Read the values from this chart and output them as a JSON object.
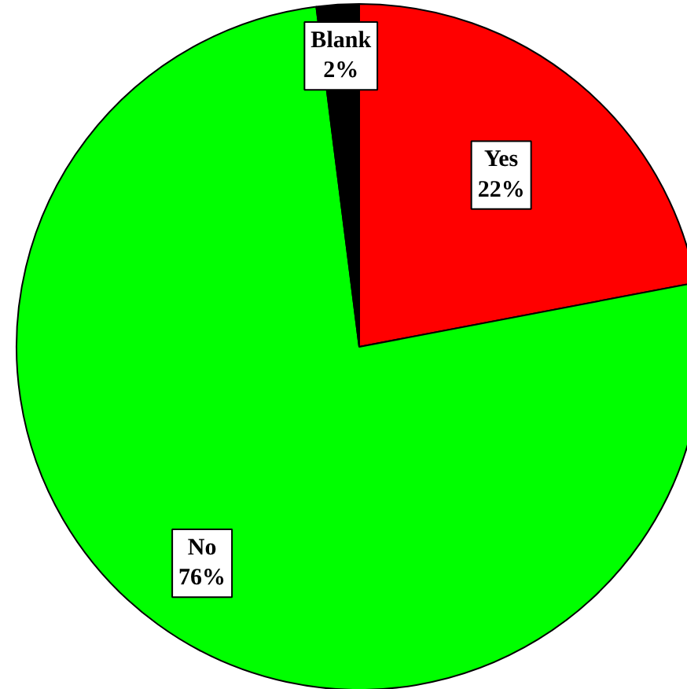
{
  "chart_data": {
    "type": "pie",
    "categories": [
      "Yes",
      "No",
      "Blank"
    ],
    "values": [
      22,
      76,
      2
    ],
    "colors": [
      "#ff0000",
      "#00ff00",
      "#000000"
    ],
    "value_labels": [
      "22%",
      "76%",
      "2%"
    ]
  }
}
